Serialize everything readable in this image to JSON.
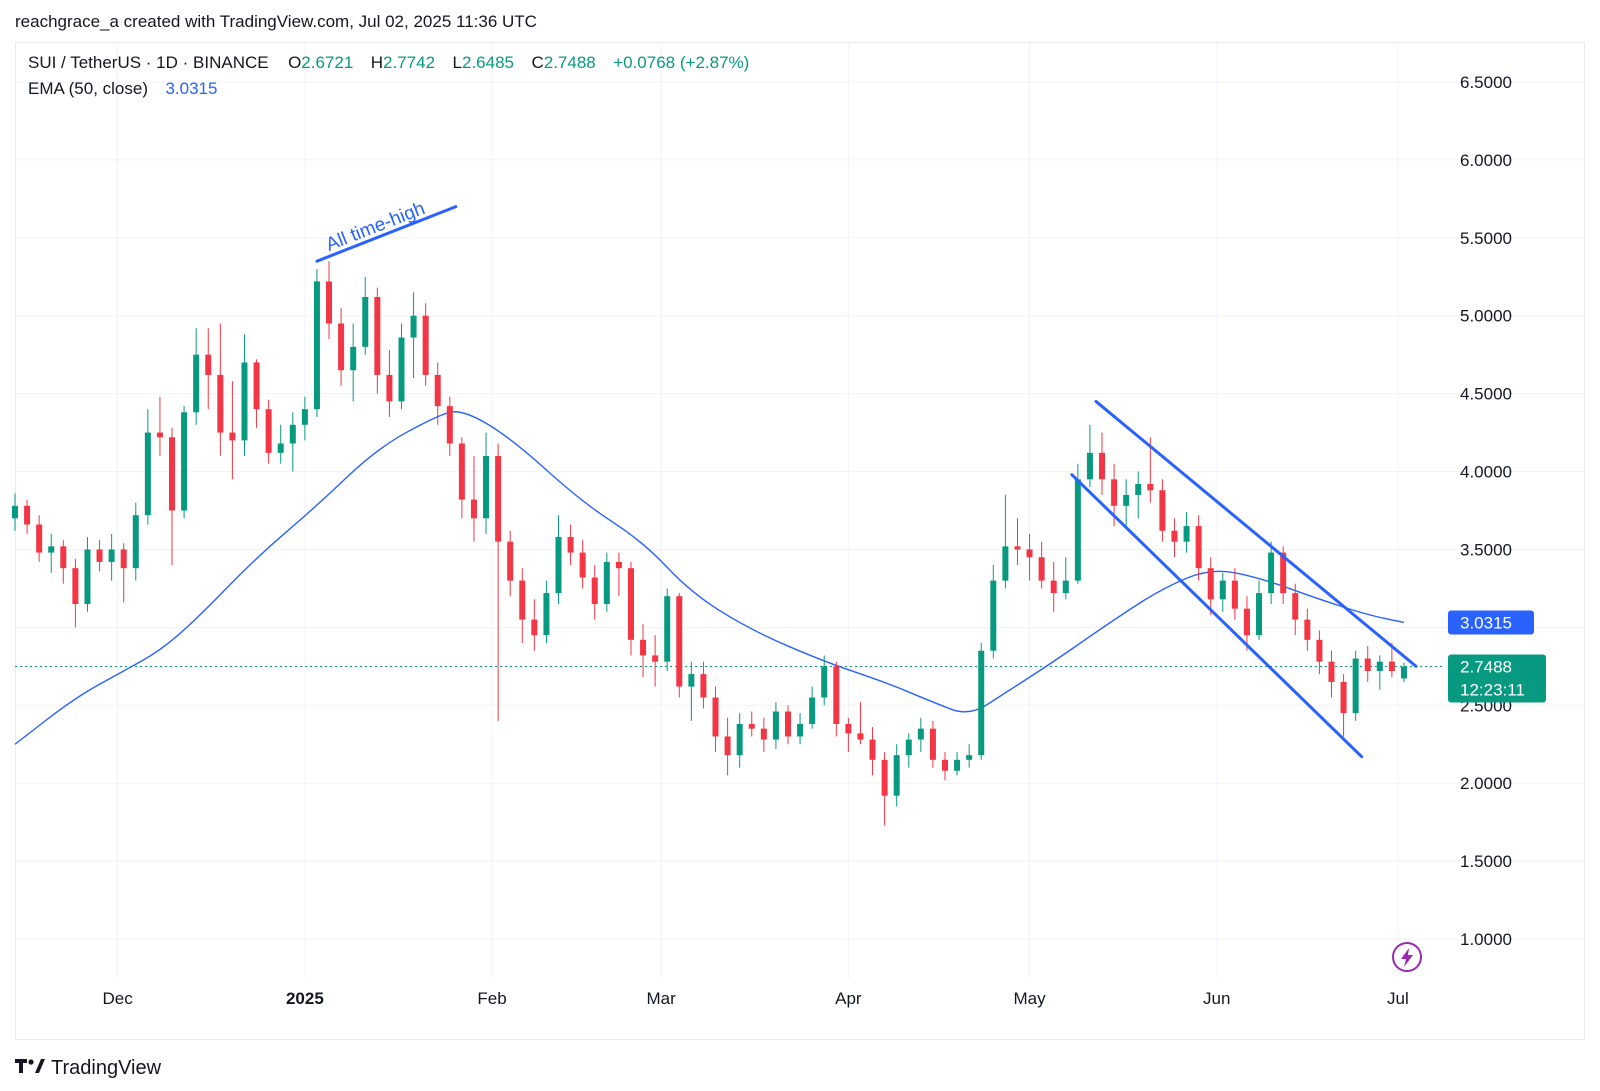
{
  "header": {
    "credit": "reachgrace_a created with TradingView.com, Jul 02, 2025 11:36 UTC"
  },
  "legend": {
    "symbol": "SUI / TetherUS · 1D · BINANCE",
    "open_label": "O",
    "open": "2.6721",
    "high_label": "H",
    "high": "2.7742",
    "low_label": "L",
    "low": "2.6485",
    "close_label": "C",
    "close": "2.7488",
    "change": "+0.0768 (+2.87%)",
    "ema_label": "EMA (50, close)",
    "ema_value": "3.0315"
  },
  "price_tags": {
    "ema": "3.0315",
    "last": "2.7488",
    "countdown": "12:23:11"
  },
  "annotation": {
    "text": "All time-high"
  },
  "footer": {
    "brand": "TradingView"
  },
  "colors": {
    "up": "#089981",
    "down": "#f23645",
    "ema": "#2962ff",
    "drawing": "#2962ff",
    "grid": "#f0f3fa",
    "axis_text": "#131722"
  },
  "icons": {
    "replay": "lightning-bolt-icon",
    "logo": "tradingview-logo-icon"
  },
  "chart_data": {
    "type": "candlestick",
    "symbol": "SUI / TetherUS",
    "interval": "1D",
    "exchange": "BINANCE",
    "y_axis": {
      "ticks": [
        "1.0000",
        "1.5000",
        "2.0000",
        "2.5000",
        "3.0000",
        "3.5000",
        "4.0000",
        "4.5000",
        "5.0000",
        "5.5000",
        "6.0000",
        "6.5000"
      ],
      "range": [
        0.75,
        6.75
      ],
      "position": "right"
    },
    "x_axis": {
      "ticks": [
        "Dec",
        "2025",
        "Feb",
        "Mar",
        "Apr",
        "May",
        "Jun",
        "Jul"
      ],
      "range": [
        "2024-11-14",
        "2025-07-03"
      ]
    },
    "grid": true,
    "ohlc": [
      [
        "2024-11-14",
        3.7,
        3.86,
        3.62,
        3.78
      ],
      [
        "2024-11-16",
        3.78,
        3.82,
        3.6,
        3.66
      ],
      [
        "2024-11-18",
        3.66,
        3.72,
        3.42,
        3.48
      ],
      [
        "2024-11-20",
        3.48,
        3.6,
        3.35,
        3.52
      ],
      [
        "2024-11-22",
        3.52,
        3.56,
        3.28,
        3.38
      ],
      [
        "2024-11-24",
        3.38,
        3.44,
        3.0,
        3.15
      ],
      [
        "2024-11-26",
        3.15,
        3.58,
        3.1,
        3.5
      ],
      [
        "2024-11-28",
        3.5,
        3.56,
        3.36,
        3.42
      ],
      [
        "2024-11-30",
        3.42,
        3.6,
        3.3,
        3.5
      ],
      [
        "2024-12-02",
        3.5,
        3.54,
        3.16,
        3.38
      ],
      [
        "2024-12-04",
        3.38,
        3.8,
        3.3,
        3.72
      ],
      [
        "2024-12-06",
        3.72,
        4.4,
        3.66,
        4.25
      ],
      [
        "2024-12-08",
        4.25,
        4.48,
        4.1,
        4.22
      ],
      [
        "2024-12-10",
        4.22,
        4.28,
        3.4,
        3.75
      ],
      [
        "2024-12-12",
        3.75,
        4.42,
        3.7,
        4.38
      ],
      [
        "2024-12-14",
        4.38,
        4.92,
        4.3,
        4.75
      ],
      [
        "2024-12-16",
        4.75,
        4.92,
        4.4,
        4.62
      ],
      [
        "2024-12-18",
        4.62,
        4.95,
        4.1,
        4.25
      ],
      [
        "2024-12-20",
        4.25,
        4.58,
        3.95,
        4.2
      ],
      [
        "2024-12-22",
        4.2,
        4.88,
        4.1,
        4.7
      ],
      [
        "2024-12-24",
        4.7,
        4.72,
        4.28,
        4.4
      ],
      [
        "2024-12-26",
        4.4,
        4.46,
        4.05,
        4.12
      ],
      [
        "2024-12-28",
        4.12,
        4.3,
        4.05,
        4.18
      ],
      [
        "2024-12-30",
        4.18,
        4.38,
        4.0,
        4.3
      ],
      [
        "2025-01-01",
        4.3,
        4.48,
        4.2,
        4.4
      ],
      [
        "2025-01-03",
        4.4,
        5.3,
        4.35,
        5.22
      ],
      [
        "2025-01-05",
        5.22,
        5.35,
        4.85,
        4.95
      ],
      [
        "2025-01-07",
        4.95,
        5.05,
        4.55,
        4.65
      ],
      [
        "2025-01-09",
        4.65,
        4.95,
        4.45,
        4.8
      ],
      [
        "2025-01-11",
        4.8,
        5.25,
        4.75,
        5.12
      ],
      [
        "2025-01-13",
        5.12,
        5.18,
        4.5,
        4.62
      ],
      [
        "2025-01-15",
        4.62,
        4.78,
        4.35,
        4.45
      ],
      [
        "2025-01-17",
        4.45,
        4.95,
        4.4,
        4.86
      ],
      [
        "2025-01-19",
        4.86,
        5.15,
        4.6,
        5.0
      ],
      [
        "2025-01-21",
        5.0,
        5.08,
        4.55,
        4.62
      ],
      [
        "2025-01-23",
        4.62,
        4.7,
        4.3,
        4.42
      ],
      [
        "2025-01-25",
        4.42,
        4.48,
        4.1,
        4.18
      ],
      [
        "2025-01-27",
        4.18,
        4.22,
        3.7,
        3.82
      ],
      [
        "2025-01-29",
        3.82,
        4.1,
        3.55,
        3.7
      ],
      [
        "2025-01-31",
        3.7,
        4.25,
        3.6,
        4.1
      ],
      [
        "2025-02-02",
        4.1,
        4.18,
        2.4,
        3.55
      ],
      [
        "2025-02-04",
        3.55,
        3.62,
        3.2,
        3.3
      ],
      [
        "2025-02-06",
        3.3,
        3.38,
        2.9,
        3.05
      ],
      [
        "2025-02-08",
        3.05,
        3.18,
        2.85,
        2.95
      ],
      [
        "2025-02-10",
        2.95,
        3.3,
        2.9,
        3.22
      ],
      [
        "2025-02-12",
        3.22,
        3.72,
        3.15,
        3.58
      ],
      [
        "2025-02-14",
        3.58,
        3.66,
        3.4,
        3.48
      ],
      [
        "2025-02-16",
        3.48,
        3.56,
        3.25,
        3.32
      ],
      [
        "2025-02-18",
        3.32,
        3.4,
        3.05,
        3.15
      ],
      [
        "2025-02-20",
        3.15,
        3.48,
        3.1,
        3.42
      ],
      [
        "2025-02-22",
        3.42,
        3.48,
        3.2,
        3.38
      ],
      [
        "2025-02-24",
        3.38,
        3.42,
        2.82,
        2.92
      ],
      [
        "2025-02-26",
        2.92,
        3.02,
        2.68,
        2.82
      ],
      [
        "2025-02-28",
        2.82,
        2.95,
        2.62,
        2.78
      ],
      [
        "2025-03-02",
        2.78,
        3.25,
        2.72,
        3.2
      ],
      [
        "2025-03-04",
        3.2,
        3.22,
        2.55,
        2.62
      ],
      [
        "2025-03-06",
        2.62,
        2.78,
        2.4,
        2.7
      ],
      [
        "2025-03-08",
        2.7,
        2.78,
        2.48,
        2.55
      ],
      [
        "2025-03-10",
        2.55,
        2.62,
        2.2,
        2.3
      ],
      [
        "2025-03-12",
        2.3,
        2.42,
        2.05,
        2.18
      ],
      [
        "2025-03-14",
        2.18,
        2.45,
        2.1,
        2.38
      ],
      [
        "2025-03-16",
        2.38,
        2.46,
        2.3,
        2.35
      ],
      [
        "2025-03-18",
        2.35,
        2.42,
        2.2,
        2.28
      ],
      [
        "2025-03-20",
        2.28,
        2.52,
        2.22,
        2.46
      ],
      [
        "2025-03-22",
        2.46,
        2.5,
        2.25,
        2.3
      ],
      [
        "2025-03-24",
        2.3,
        2.45,
        2.25,
        2.38
      ],
      [
        "2025-03-26",
        2.38,
        2.62,
        2.35,
        2.55
      ],
      [
        "2025-03-28",
        2.55,
        2.82,
        2.5,
        2.75
      ],
      [
        "2025-03-30",
        2.75,
        2.78,
        2.3,
        2.38
      ],
      [
        "2025-04-01",
        2.38,
        2.42,
        2.2,
        2.32
      ],
      [
        "2025-04-03",
        2.32,
        2.52,
        2.25,
        2.28
      ],
      [
        "2025-04-05",
        2.28,
        2.36,
        2.05,
        2.15
      ],
      [
        "2025-04-07",
        2.15,
        2.2,
        1.73,
        1.92
      ],
      [
        "2025-04-09",
        1.92,
        2.25,
        1.85,
        2.18
      ],
      [
        "2025-04-11",
        2.18,
        2.32,
        2.1,
        2.28
      ],
      [
        "2025-04-13",
        2.28,
        2.42,
        2.2,
        2.35
      ],
      [
        "2025-04-15",
        2.35,
        2.4,
        2.1,
        2.15
      ],
      [
        "2025-04-17",
        2.15,
        2.2,
        2.02,
        2.08
      ],
      [
        "2025-04-19",
        2.08,
        2.2,
        2.05,
        2.15
      ],
      [
        "2025-04-21",
        2.15,
        2.25,
        2.1,
        2.18
      ],
      [
        "2025-04-23",
        2.18,
        2.9,
        2.15,
        2.85
      ],
      [
        "2025-04-25",
        2.85,
        3.4,
        2.8,
        3.3
      ],
      [
        "2025-04-27",
        3.3,
        3.85,
        3.25,
        3.52
      ],
      [
        "2025-04-29",
        3.52,
        3.7,
        3.4,
        3.5
      ],
      [
        "2025-05-01",
        3.5,
        3.6,
        3.3,
        3.45
      ],
      [
        "2025-05-03",
        3.45,
        3.55,
        3.25,
        3.3
      ],
      [
        "2025-05-05",
        3.3,
        3.42,
        3.1,
        3.22
      ],
      [
        "2025-05-07",
        3.22,
        3.45,
        3.18,
        3.3
      ],
      [
        "2025-05-09",
        3.3,
        4.05,
        3.28,
        3.95
      ],
      [
        "2025-05-11",
        3.95,
        4.3,
        3.9,
        4.12
      ],
      [
        "2025-05-13",
        4.12,
        4.25,
        3.85,
        3.95
      ],
      [
        "2025-05-15",
        3.95,
        4.05,
        3.65,
        3.78
      ],
      [
        "2025-05-17",
        3.78,
        3.95,
        3.65,
        3.85
      ],
      [
        "2025-05-19",
        3.85,
        4.0,
        3.7,
        3.92
      ],
      [
        "2025-05-21",
        3.92,
        4.22,
        3.8,
        3.88
      ],
      [
        "2025-05-23",
        3.88,
        3.95,
        3.55,
        3.62
      ],
      [
        "2025-05-25",
        3.62,
        3.7,
        3.45,
        3.55
      ],
      [
        "2025-05-27",
        3.55,
        3.74,
        3.48,
        3.65
      ],
      [
        "2025-05-29",
        3.65,
        3.72,
        3.3,
        3.38
      ],
      [
        "2025-05-31",
        3.38,
        3.45,
        3.08,
        3.18
      ],
      [
        "2025-06-02",
        3.18,
        3.35,
        3.1,
        3.3
      ],
      [
        "2025-06-04",
        3.3,
        3.38,
        3.05,
        3.12
      ],
      [
        "2025-06-06",
        3.12,
        3.2,
        2.85,
        2.95
      ],
      [
        "2025-06-08",
        2.95,
        3.3,
        2.92,
        3.22
      ],
      [
        "2025-06-10",
        3.22,
        3.55,
        3.15,
        3.48
      ],
      [
        "2025-06-12",
        3.48,
        3.52,
        3.15,
        3.22
      ],
      [
        "2025-06-14",
        3.22,
        3.28,
        2.95,
        3.05
      ],
      [
        "2025-06-16",
        3.05,
        3.12,
        2.85,
        2.92
      ],
      [
        "2025-06-18",
        2.92,
        2.98,
        2.7,
        2.78
      ],
      [
        "2025-06-20",
        2.78,
        2.85,
        2.55,
        2.65
      ],
      [
        "2025-06-22",
        2.65,
        2.7,
        2.3,
        2.45
      ],
      [
        "2025-06-24",
        2.45,
        2.85,
        2.4,
        2.8
      ],
      [
        "2025-06-26",
        2.8,
        2.88,
        2.65,
        2.72
      ],
      [
        "2025-06-28",
        2.72,
        2.82,
        2.6,
        2.78
      ],
      [
        "2025-06-30",
        2.78,
        2.9,
        2.68,
        2.72
      ],
      [
        "2025-07-02",
        2.6721,
        2.7742,
        2.6485,
        2.7488
      ]
    ],
    "ema": {
      "name": "EMA (50, close)",
      "points": [
        [
          "2024-11-14",
          2.25
        ],
        [
          "2024-11-24",
          2.55
        ],
        [
          "2024-12-02",
          2.72
        ],
        [
          "2024-12-08",
          2.85
        ],
        [
          "2024-12-14",
          3.05
        ],
        [
          "2024-12-24",
          3.45
        ],
        [
          "2025-01-03",
          3.78
        ],
        [
          "2025-01-13",
          4.15
        ],
        [
          "2025-01-23",
          4.36
        ],
        [
          "2025-01-27",
          4.4
        ],
        [
          "2025-02-04",
          4.22
        ],
        [
          "2025-02-16",
          3.8
        ],
        [
          "2025-02-26",
          3.55
        ],
        [
          "2025-03-06",
          3.22
        ],
        [
          "2025-03-16",
          2.98
        ],
        [
          "2025-03-28",
          2.78
        ],
        [
          "2025-04-07",
          2.65
        ],
        [
          "2025-04-15",
          2.52
        ],
        [
          "2025-04-21",
          2.43
        ],
        [
          "2025-04-27",
          2.58
        ],
        [
          "2025-05-05",
          2.78
        ],
        [
          "2025-05-15",
          3.05
        ],
        [
          "2025-05-23",
          3.25
        ],
        [
          "2025-05-31",
          3.38
        ],
        [
          "2025-06-08",
          3.32
        ],
        [
          "2025-06-18",
          3.18
        ],
        [
          "2025-06-26",
          3.08
        ],
        [
          "2025-07-02",
          3.0315
        ]
      ]
    },
    "trendlines": [
      {
        "from": [
          "2025-05-12",
          4.45
        ],
        "to": [
          "2025-07-04",
          2.75
        ]
      },
      {
        "from": [
          "2025-05-08",
          3.98
        ],
        "to": [
          "2025-06-25",
          2.17
        ]
      },
      {
        "from": [
          "2025-01-03",
          5.35
        ],
        "to": [
          "2025-01-26",
          5.7
        ]
      }
    ],
    "annotations": [
      "All time-high"
    ]
  }
}
